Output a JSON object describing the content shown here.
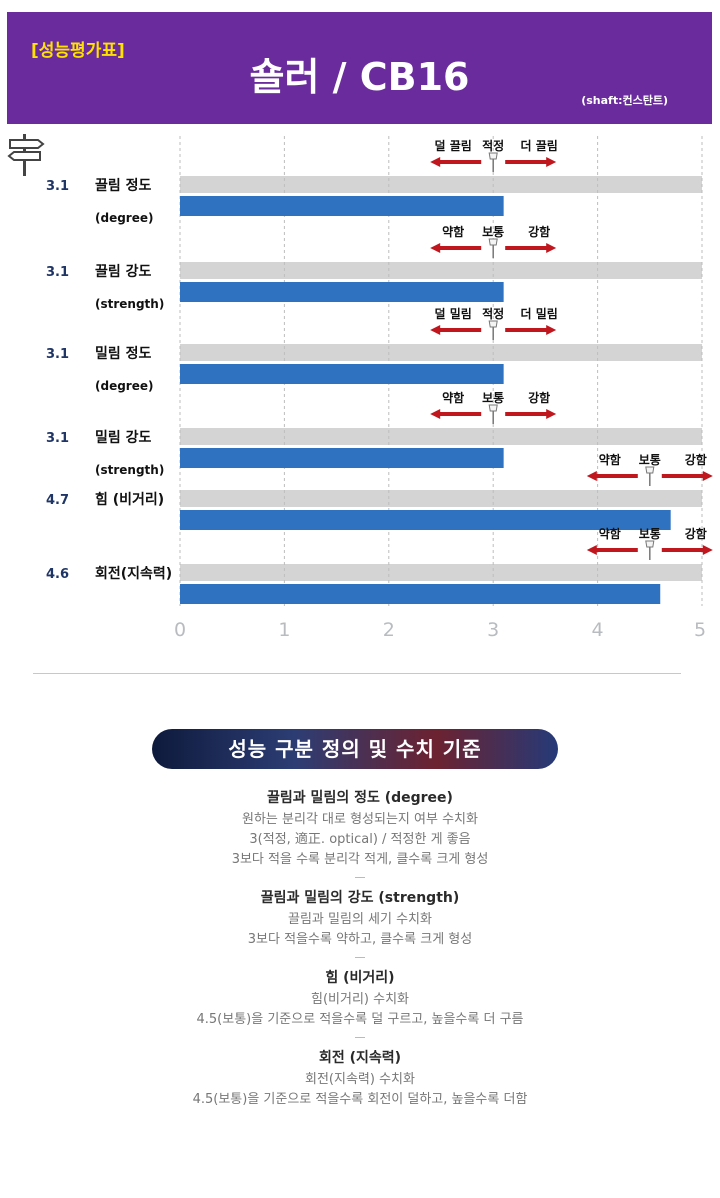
{
  "header": {
    "badge": "[성능평가표]",
    "title": "숄러 / CB16",
    "shaft": "(shaft:컨스탄트)"
  },
  "chart_data": {
    "type": "bar",
    "orientation": "horizontal",
    "xlim": [
      0,
      5
    ],
    "x_ticks": [
      "0",
      "1",
      "2",
      "3",
      "4",
      "5"
    ],
    "grid": true,
    "rows": [
      {
        "score": "3.1",
        "value": 3.1,
        "label": "끌림 정도",
        "sublabel": "(degree)",
        "guide": {
          "center": 3.0,
          "left": "덜 끌림",
          "mid": "적정",
          "right": "더 끌림"
        }
      },
      {
        "score": "3.1",
        "value": 3.1,
        "label": "끌림 강도",
        "sublabel": "(strength)",
        "guide": {
          "center": 3.0,
          "left": "약함",
          "mid": "보통",
          "right": "강함"
        }
      },
      {
        "score": "3.1",
        "value": 3.1,
        "label": "밀림 정도",
        "sublabel": "(degree)",
        "guide": {
          "center": 3.0,
          "left": "덜 밀림",
          "mid": "적정",
          "right": "더 밀림"
        }
      },
      {
        "score": "3.1",
        "value": 3.1,
        "label": "밀림 강도",
        "sublabel": "(strength)",
        "guide": {
          "center": 3.0,
          "left": "약함",
          "mid": "보통",
          "right": "강함"
        }
      },
      {
        "score": "4.7",
        "value": 4.7,
        "label": "힘 (비거리)",
        "sublabel": "",
        "guide": {
          "center": 4.5,
          "left": "약함",
          "mid": "보통",
          "right": "강함"
        }
      },
      {
        "score": "4.6",
        "value": 4.6,
        "label": "회전(지속력)",
        "sublabel": "",
        "guide": {
          "center": 4.5,
          "left": "약함",
          "mid": "보통",
          "right": "강함"
        }
      }
    ]
  },
  "colors": {
    "header_bg": "#6a2c9c",
    "badge": "#ffe100",
    "bar": "#2f73c0",
    "track": "#d4d4d4",
    "arrow": "#c0161e",
    "score": "#1f3565"
  },
  "legend": {
    "banner": "성능 구분 정의 및 수치 기준",
    "sections": [
      {
        "title": "끌림과 밀림의 정도 (degree)",
        "lines": [
          "원하는 분리각 대로 형성되는지 여부 수치화",
          "3(적정, 適正. optical) / 적정한 게 좋음",
          "3보다 적을 수록 분리각 적게, 클수록 크게 형성"
        ]
      },
      {
        "title": "끌림과 밀림의 강도 (strength)",
        "lines": [
          "끌림과 밀림의 세기 수치화",
          "3보다 적을수록 약하고, 클수록 크게 형성"
        ]
      },
      {
        "title": "힘 (비거리)",
        "lines": [
          "힘(비거리) 수치화",
          "4.5(보통)을 기준으로 적을수록 덜 구르고, 높을수록 더 구름"
        ]
      },
      {
        "title": "회전 (지속력)",
        "lines": [
          "회전(지속력) 수치화",
          "4.5(보통)을 기준으로 적을수록 회전이 덜하고, 높을수록 더함"
        ]
      }
    ]
  }
}
